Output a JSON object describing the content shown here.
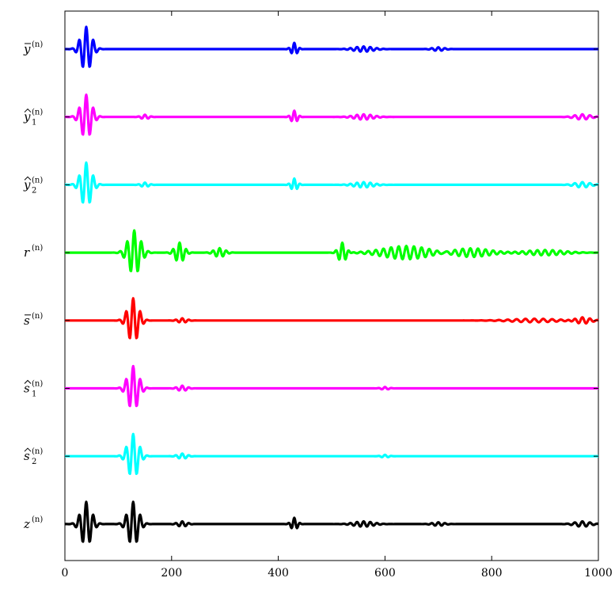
{
  "chart_data": {
    "type": "line",
    "title": "",
    "xlabel": "",
    "ylabel": "",
    "xlim": [
      0,
      1000
    ],
    "x_ticks": [
      "0",
      "200",
      "400",
      "600",
      "800",
      "1000"
    ],
    "grid": false,
    "legend": "none",
    "series": [
      {
        "label_base": "y",
        "label_accent": "bar",
        "label_sub": "",
        "label_sup": "(n)",
        "color": "#0000ff",
        "bursts": [
          {
            "center": 40,
            "amp": 1.0,
            "width": 14,
            "freq": 0.075
          },
          {
            "center": 430,
            "amp": 0.28,
            "width": 8,
            "freq": 0.09
          },
          {
            "center": 560,
            "amp": 0.12,
            "width": 25,
            "freq": 0.08
          },
          {
            "center": 700,
            "amp": 0.08,
            "width": 15,
            "freq": 0.08
          }
        ]
      },
      {
        "label_base": "y",
        "label_accent": "hat",
        "label_sub": "1",
        "label_sup": "(n)",
        "color": "#ff00ff",
        "bursts": [
          {
            "center": 40,
            "amp": 1.0,
            "width": 14,
            "freq": 0.075
          },
          {
            "center": 150,
            "amp": 0.1,
            "width": 10,
            "freq": 0.08
          },
          {
            "center": 430,
            "amp": 0.28,
            "width": 8,
            "freq": 0.09
          },
          {
            "center": 560,
            "amp": 0.12,
            "width": 25,
            "freq": 0.08
          },
          {
            "center": 970,
            "amp": 0.12,
            "width": 20,
            "freq": 0.07
          }
        ]
      },
      {
        "label_base": "y",
        "label_accent": "hat",
        "label_sub": "2",
        "label_sup": "(n)",
        "color": "#00ffff",
        "bursts": [
          {
            "center": 40,
            "amp": 1.0,
            "width": 14,
            "freq": 0.075
          },
          {
            "center": 150,
            "amp": 0.1,
            "width": 10,
            "freq": 0.08
          },
          {
            "center": 430,
            "amp": 0.28,
            "width": 8,
            "freq": 0.09
          },
          {
            "center": 560,
            "amp": 0.12,
            "width": 25,
            "freq": 0.08
          },
          {
            "center": 970,
            "amp": 0.12,
            "width": 20,
            "freq": 0.07
          }
        ]
      },
      {
        "label_base": "r",
        "label_accent": "",
        "label_sub": "",
        "label_sup": "(n)",
        "color": "#00ff00",
        "bursts": [
          {
            "center": 130,
            "amp": 1.0,
            "width": 16,
            "freq": 0.075
          },
          {
            "center": 215,
            "amp": 0.45,
            "width": 12,
            "freq": 0.08
          },
          {
            "center": 290,
            "amp": 0.2,
            "width": 14,
            "freq": 0.08
          },
          {
            "center": 520,
            "amp": 0.45,
            "width": 10,
            "freq": 0.08
          },
          {
            "center": 640,
            "amp": 0.3,
            "width": 60,
            "freq": 0.07
          },
          {
            "center": 760,
            "amp": 0.2,
            "width": 50,
            "freq": 0.07
          },
          {
            "center": 900,
            "amp": 0.12,
            "width": 50,
            "freq": 0.07
          }
        ]
      },
      {
        "label_base": "s",
        "label_accent": "bar",
        "label_sub": "",
        "label_sup": "(n)",
        "color": "#ff0000",
        "bursts": [
          {
            "center": 128,
            "amp": 1.0,
            "width": 14,
            "freq": 0.075
          },
          {
            "center": 220,
            "amp": 0.1,
            "width": 12,
            "freq": 0.08
          },
          {
            "center": 880,
            "amp": 0.08,
            "width": 60,
            "freq": 0.06
          },
          {
            "center": 970,
            "amp": 0.15,
            "width": 20,
            "freq": 0.07
          }
        ]
      },
      {
        "label_base": "s",
        "label_accent": "hat",
        "label_sub": "1",
        "label_sup": "(n)",
        "color": "#ff00ff",
        "bursts": [
          {
            "center": 128,
            "amp": 1.0,
            "width": 14,
            "freq": 0.075
          },
          {
            "center": 220,
            "amp": 0.12,
            "width": 12,
            "freq": 0.08
          },
          {
            "center": 600,
            "amp": 0.06,
            "width": 10,
            "freq": 0.08
          }
        ]
      },
      {
        "label_base": "s",
        "label_accent": "hat",
        "label_sub": "2",
        "label_sup": "(n)",
        "color": "#00ffff",
        "bursts": [
          {
            "center": 128,
            "amp": 1.0,
            "width": 14,
            "freq": 0.075
          },
          {
            "center": 220,
            "amp": 0.12,
            "width": 12,
            "freq": 0.08
          },
          {
            "center": 600,
            "amp": 0.06,
            "width": 10,
            "freq": 0.08
          }
        ]
      },
      {
        "label_base": "z",
        "label_accent": "",
        "label_sub": "",
        "label_sup": "(n)",
        "color": "#000000",
        "bursts": [
          {
            "center": 40,
            "amp": 1.0,
            "width": 14,
            "freq": 0.075
          },
          {
            "center": 128,
            "amp": 1.0,
            "width": 14,
            "freq": 0.075
          },
          {
            "center": 220,
            "amp": 0.12,
            "width": 12,
            "freq": 0.08
          },
          {
            "center": 430,
            "amp": 0.28,
            "width": 8,
            "freq": 0.09
          },
          {
            "center": 560,
            "amp": 0.12,
            "width": 25,
            "freq": 0.08
          },
          {
            "center": 700,
            "amp": 0.08,
            "width": 15,
            "freq": 0.08
          },
          {
            "center": 970,
            "amp": 0.12,
            "width": 20,
            "freq": 0.07
          }
        ]
      }
    ]
  }
}
